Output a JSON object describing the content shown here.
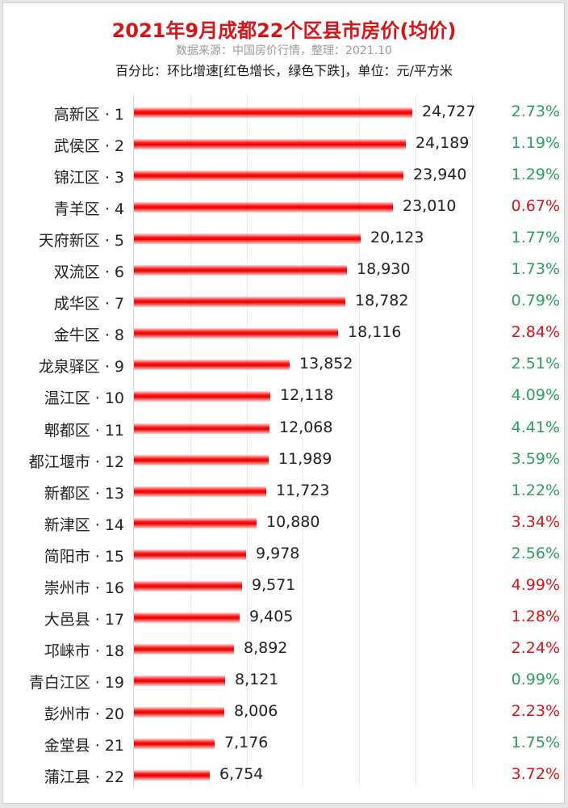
{
  "title": "2021年9月成都22个区县市房价(均价)",
  "subtitle": "数据来源：中国房价行情，整理：2021.10",
  "note": "百分比：环比增速[红色增长，绿色下跌]，单位：元/平方米",
  "colors": {
    "bar": "#e60000",
    "up": "#d4161b",
    "down": "#2e9e5e",
    "title": "#d4161b"
  },
  "chart_data": {
    "type": "bar",
    "orientation": "horizontal",
    "title": "2021年9月成都22个区县市房价(均价)",
    "subtitle": "数据来源：中国房价行情，整理：2021.10",
    "annotation": "百分比：环比增速[红色增长，绿色下跌]，单位：元/平方米",
    "xlabel": "",
    "ylabel": "",
    "xlim": [
      0,
      25000
    ],
    "grid": true,
    "categories": [
      "高新区 · 1",
      "武侯区 · 2",
      "锦江区 · 3",
      "青羊区 · 4",
      "天府新区 · 5",
      "双流区 · 6",
      "成华区 · 7",
      "金牛区 · 8",
      "龙泉驿区 · 9",
      "温江区 · 10",
      "郫都区 · 11",
      "都江堰市 · 12",
      "新都区 · 13",
      "新津区 · 14",
      "简阳市 · 15",
      "崇州市 · 16",
      "大邑县 · 17",
      "邛崃市 · 18",
      "青白江区 · 19",
      "彭州市 · 20",
      "金堂县 · 21",
      "蒲江县 · 22"
    ],
    "values": [
      24727,
      24189,
      23940,
      23010,
      20123,
      18930,
      18782,
      18116,
      13852,
      12118,
      12068,
      11989,
      11723,
      10880,
      9978,
      9571,
      9405,
      8892,
      8121,
      8006,
      7176,
      6754
    ],
    "value_labels": [
      "24,727",
      "24,189",
      "23,940",
      "23,010",
      "20,123",
      "18,930",
      "18,782",
      "18,116",
      "13,852",
      "12,118",
      "12,068",
      "11,989",
      "11,723",
      "10,880",
      "9,978",
      "9,571",
      "9,405",
      "8,892",
      "8,121",
      "8,006",
      "7,176",
      "6,754"
    ],
    "mom_change": [
      "2.73%",
      "1.19%",
      "1.29%",
      "0.67%",
      "1.77%",
      "1.73%",
      "0.79%",
      "2.84%",
      "2.51%",
      "4.09%",
      "4.41%",
      "3.59%",
      "1.22%",
      "3.34%",
      "2.56%",
      "4.99%",
      "1.28%",
      "2.24%",
      "0.99%",
      "2.23%",
      "1.75%",
      "3.72%"
    ],
    "mom_color": [
      "down",
      "down",
      "down",
      "up",
      "down",
      "down",
      "down",
      "up",
      "down",
      "down",
      "down",
      "down",
      "down",
      "up",
      "down",
      "up",
      "up",
      "up",
      "down",
      "up",
      "down",
      "up"
    ]
  }
}
